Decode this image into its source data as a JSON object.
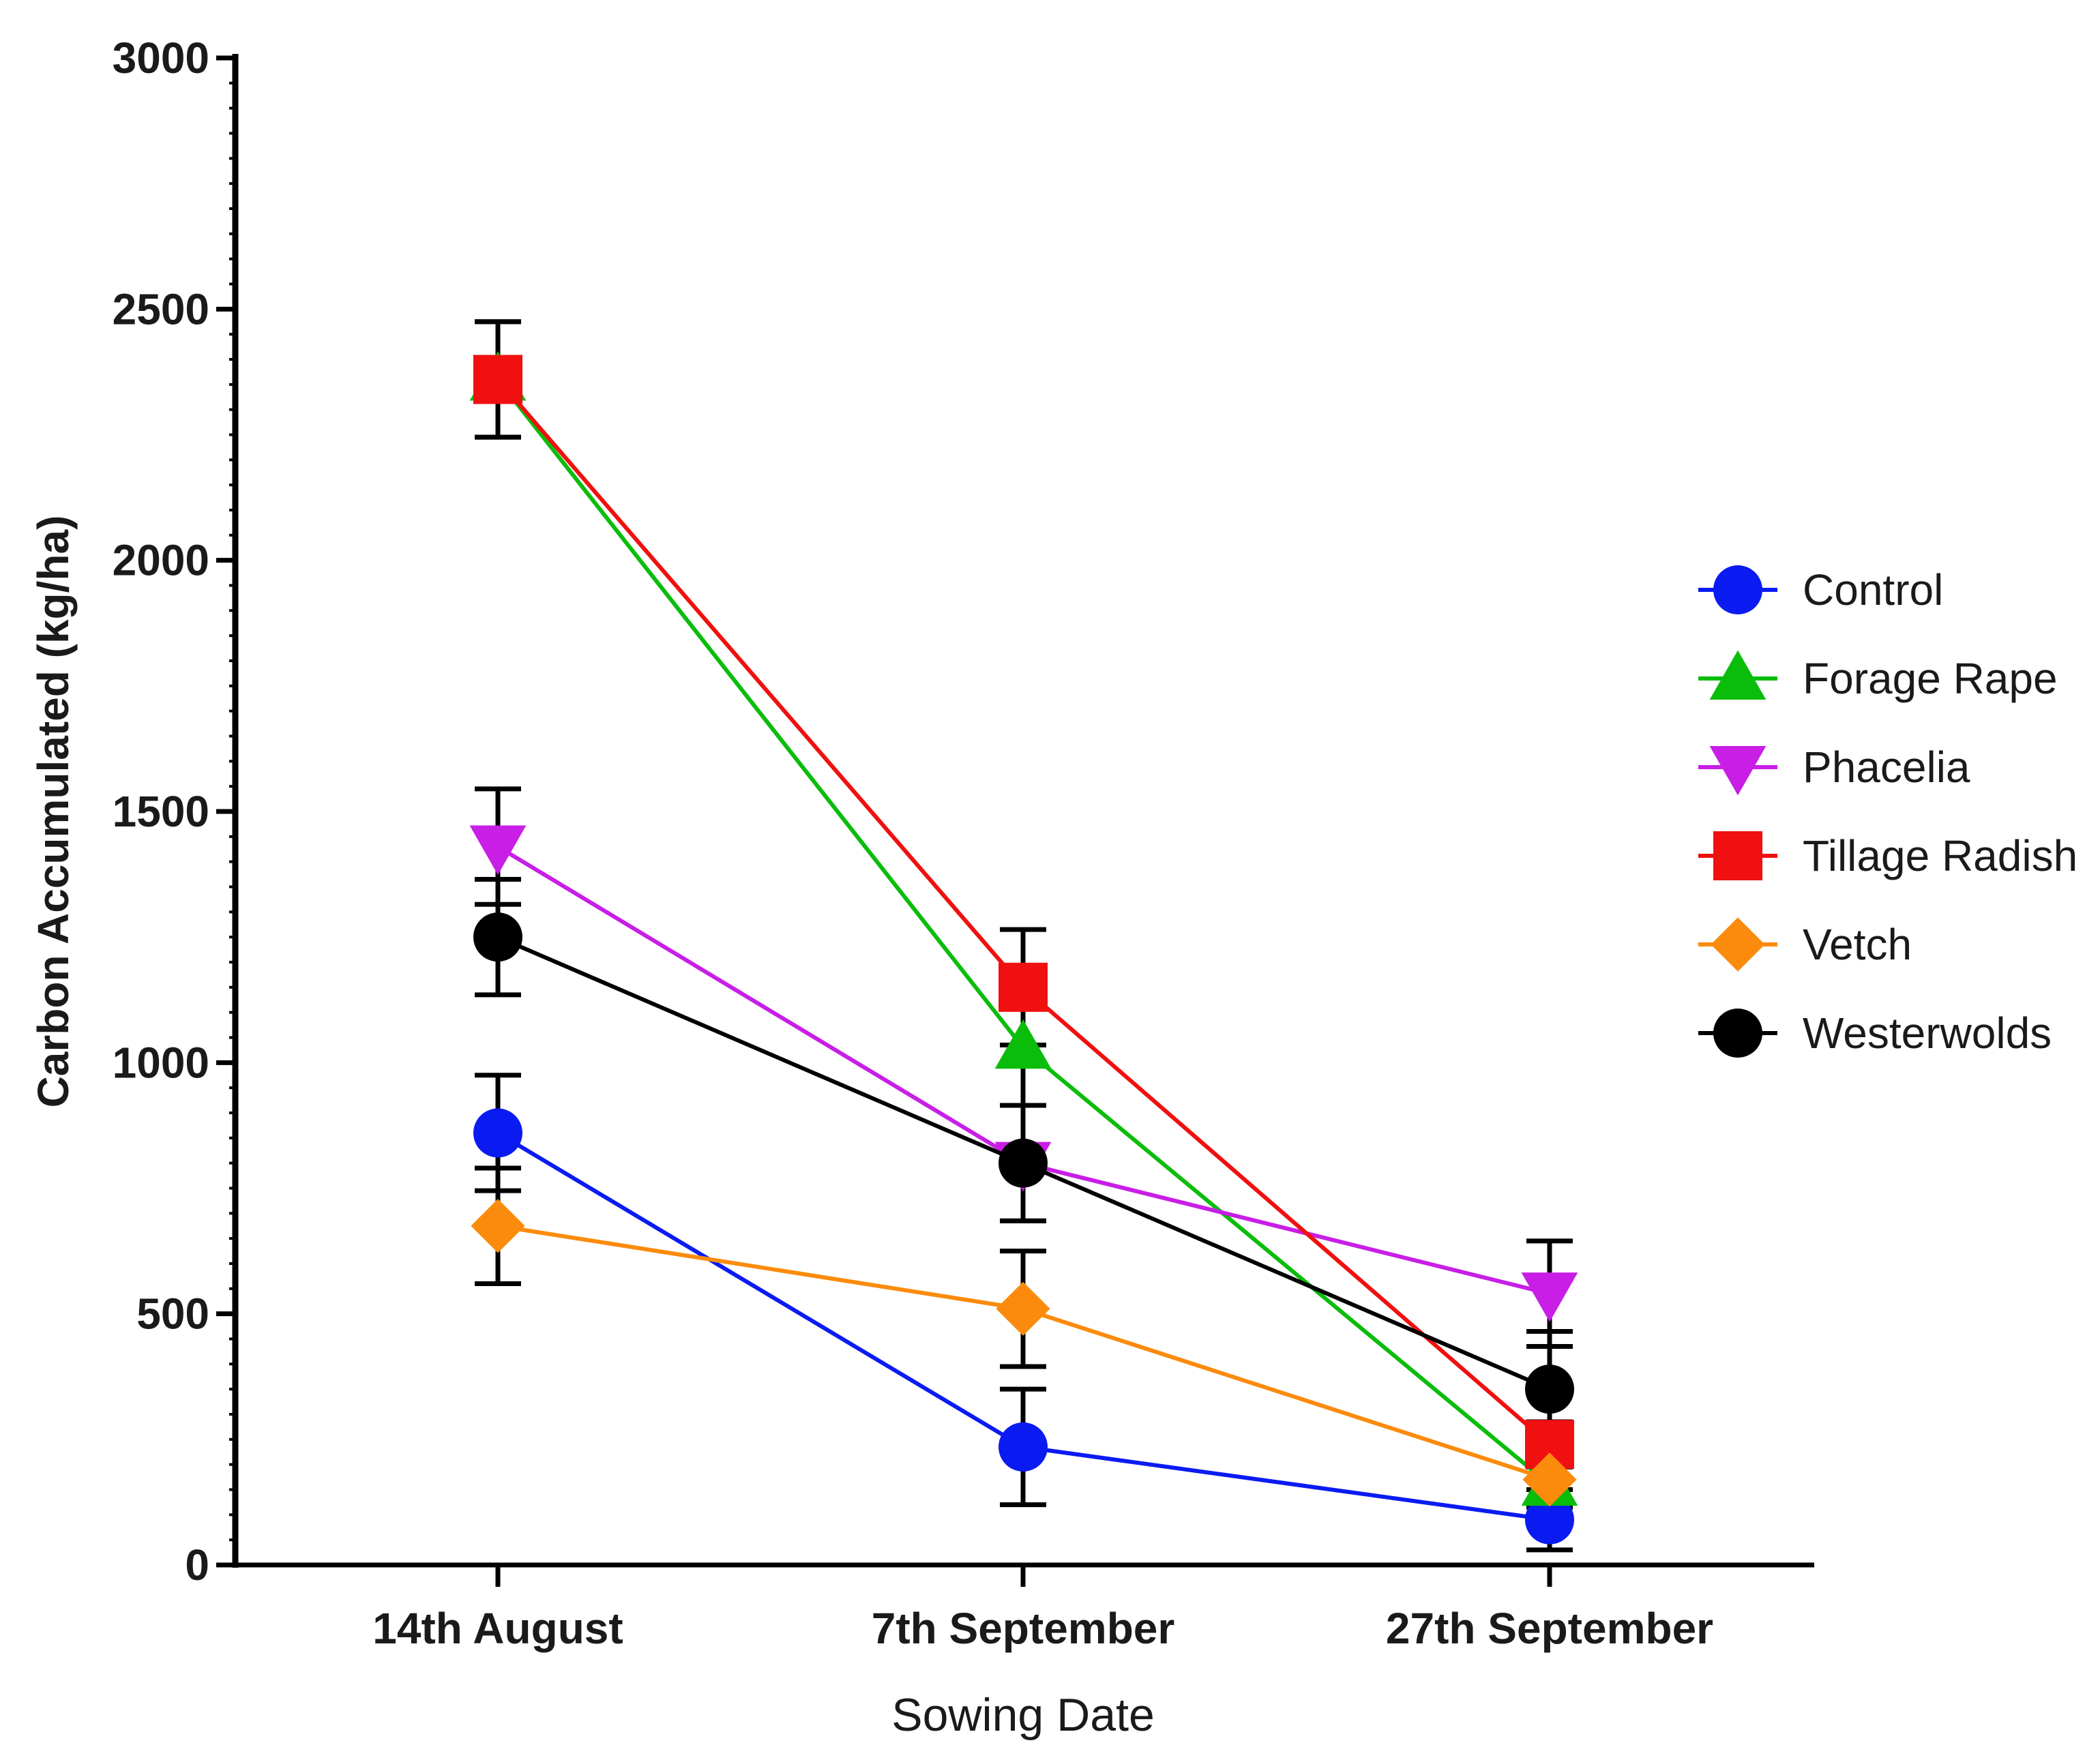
{
  "chart_data": {
    "type": "line",
    "title": "",
    "xlabel": "Sowing Date",
    "ylabel": "Carbon Accumulated (kg/ha)",
    "ylim": [
      0,
      3000
    ],
    "yticks": [
      0,
      500,
      1000,
      1500,
      2000,
      2500,
      3000
    ],
    "categories": [
      "14th August",
      "7th September",
      "27th September"
    ],
    "grid": false,
    "legend_position": "right",
    "series": [
      {
        "name": "Control",
        "color": "#0a1bf2",
        "marker": "circle",
        "values": [
          860,
          235,
          90
        ],
        "errors": [
          115,
          115,
          60
        ]
      },
      {
        "name": "Forage Rape",
        "color": "#0bbd0b",
        "marker": "triangle-up",
        "values": [
          2360,
          1030,
          160
        ],
        "errors": [
          115,
          115,
          45
        ]
      },
      {
        "name": "Phacelia",
        "color": "#c81ee6",
        "marker": "triangle-down",
        "values": [
          1430,
          800,
          540
        ],
        "errors": [
          115,
          115,
          105
        ]
      },
      {
        "name": "Tillage Radish",
        "color": "#f01010",
        "marker": "square",
        "values": [
          2360,
          1150,
          240
        ],
        "errors": [
          115,
          115,
          45
        ]
      },
      {
        "name": "Vetch",
        "color": "#fb8b0c",
        "marker": "diamond",
        "values": [
          675,
          510,
          170
        ],
        "errors": [
          115,
          115,
          40
        ]
      },
      {
        "name": "Westerwolds",
        "color": "#000000",
        "marker": "circle",
        "values": [
          1250,
          800,
          350
        ],
        "errors": [
          115,
          115,
          115
        ]
      }
    ]
  }
}
